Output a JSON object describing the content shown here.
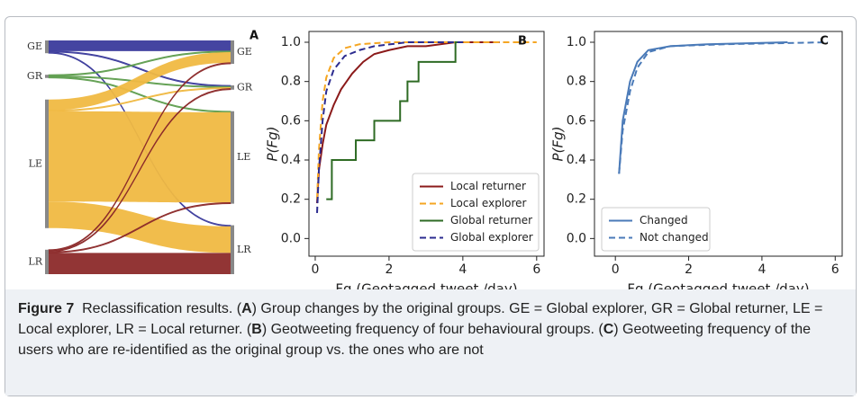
{
  "chart_data": [
    {
      "type": "sankey",
      "panel_label": "A",
      "nodes": [
        "GE",
        "GR",
        "LE",
        "LR"
      ],
      "colors": [
        "#3b3b9c",
        "#5f9e4f",
        "#f0b942",
        "#8c2a2a"
      ],
      "links": [
        {
          "source": 0,
          "target": 0,
          "value": 10
        },
        {
          "source": 0,
          "target": 1,
          "value": 1
        },
        {
          "source": 0,
          "target": 3,
          "value": 1
        },
        {
          "source": 1,
          "target": 0,
          "value": 1
        },
        {
          "source": 1,
          "target": 1,
          "value": 1
        },
        {
          "source": 1,
          "target": 2,
          "value": 1
        },
        {
          "source": 2,
          "target": 0,
          "value": 10
        },
        {
          "source": 2,
          "target": 1,
          "value": 1
        },
        {
          "source": 2,
          "target": 2,
          "value": 85
        },
        {
          "source": 2,
          "target": 3,
          "value": 25
        },
        {
          "source": 3,
          "target": 0,
          "value": 1
        },
        {
          "source": 3,
          "target": 1,
          "value": 1
        },
        {
          "source": 3,
          "target": 2,
          "value": 1
        },
        {
          "source": 3,
          "target": 3,
          "value": 20
        }
      ]
    },
    {
      "type": "line",
      "panel_label": "B",
      "xlabel": "Fg (Geotagged tweet /day)",
      "ylabel": "P(Fg)",
      "xlim": [
        -0.17,
        6.2
      ],
      "ylim": [
        -0.09,
        1.055
      ],
      "xticks": [
        0,
        2,
        4,
        6
      ],
      "yticks": [
        {
          "value": 0,
          "label": "0.0"
        },
        {
          "value": 0.2,
          "label": "0.2"
        },
        {
          "value": 0.4,
          "label": "0.4"
        },
        {
          "value": 0.6,
          "label": "0.6"
        },
        {
          "value": 0.8,
          "label": "0.8"
        },
        {
          "value": 1,
          "label": "1.0"
        }
      ],
      "legend": "lower right",
      "series": [
        {
          "name": "Local returner",
          "color": "#8b1a1a",
          "dashed": false,
          "x": [
            0.05,
            0.1,
            0.2,
            0.3,
            0.5,
            0.7,
            1.0,
            1.3,
            1.6,
            2.0,
            2.5,
            3.0,
            3.8,
            5.0
          ],
          "values": [
            0.18,
            0.35,
            0.48,
            0.58,
            0.68,
            0.76,
            0.84,
            0.9,
            0.94,
            0.96,
            0.98,
            0.98,
            1.0,
            1.0
          ]
        },
        {
          "name": "Local explorer",
          "color": "#f5a623",
          "dashed": true,
          "x": [
            0.05,
            0.1,
            0.2,
            0.3,
            0.5,
            0.8,
            1.2,
            2.0,
            4.0,
            6.0
          ],
          "values": [
            0.2,
            0.45,
            0.7,
            0.82,
            0.92,
            0.97,
            0.99,
            1.0,
            1.0,
            1.0
          ]
        },
        {
          "name": "Global returner",
          "color": "#2e6b24",
          "dashed": false,
          "x": [
            0.3,
            0.45,
            0.45,
            1.1,
            1.1,
            1.6,
            1.6,
            2.3,
            2.3,
            2.5,
            2.5,
            2.8,
            2.8,
            3.8,
            3.8,
            4.0
          ],
          "values": [
            0.2,
            0.2,
            0.4,
            0.4,
            0.5,
            0.5,
            0.6,
            0.6,
            0.7,
            0.7,
            0.8,
            0.8,
            0.9,
            0.9,
            1.0,
            1.0
          ]
        },
        {
          "name": "Global explorer",
          "color": "#2b2b8f",
          "dashed": true,
          "x": [
            0.05,
            0.1,
            0.2,
            0.3,
            0.5,
            0.8,
            1.2,
            1.6,
            2.5,
            4.0
          ],
          "values": [
            0.13,
            0.35,
            0.6,
            0.75,
            0.86,
            0.93,
            0.96,
            0.98,
            1.0,
            1.0
          ]
        }
      ]
    },
    {
      "type": "line",
      "panel_label": "C",
      "xlabel": "Fg (Geotagged tweet /day)",
      "ylabel": "P(Fg)",
      "xlim": [
        -0.57,
        6.19
      ],
      "ylim": [
        -0.09,
        1.055
      ],
      "xticks": [
        0,
        2,
        4,
        6
      ],
      "yticks": [
        {
          "value": 0,
          "label": "0.0"
        },
        {
          "value": 0.2,
          "label": "0.2"
        },
        {
          "value": 0.4,
          "label": "0.4"
        },
        {
          "value": 0.6,
          "label": "0.6"
        },
        {
          "value": 0.8,
          "label": "0.8"
        },
        {
          "value": 1,
          "label": "1.0"
        }
      ],
      "legend": "lower left",
      "series": [
        {
          "name": "Changed",
          "color": "#4a7ab8",
          "dashed": false,
          "x": [
            0.1,
            0.2,
            0.4,
            0.6,
            0.9,
            1.5,
            2.5,
            4.7
          ],
          "values": [
            0.33,
            0.6,
            0.8,
            0.9,
            0.96,
            0.98,
            0.99,
            1.0
          ]
        },
        {
          "name": "Not changed",
          "color": "#4a7ab8",
          "dashed": true,
          "x": [
            0.1,
            0.2,
            0.4,
            0.6,
            0.9,
            1.5,
            3.0,
            5.8
          ],
          "values": [
            0.33,
            0.55,
            0.75,
            0.87,
            0.95,
            0.98,
            0.99,
            1.0
          ]
        }
      ]
    }
  ],
  "caption": {
    "segments": [
      {
        "text": "Figure 7",
        "bold": true
      },
      {
        "text": "  Reclassification results. (",
        "bold": false
      },
      {
        "text": "A",
        "bold": true
      },
      {
        "text": ") Group changes by the original groups. GE = Global explorer, GR = Global returner, LE = Local explorer, LR = Local returner. (",
        "bold": false
      },
      {
        "text": "B",
        "bold": true
      },
      {
        "text": ") Geotweeting frequency of four behavioural groups. (",
        "bold": false
      },
      {
        "text": "C",
        "bold": true
      },
      {
        "text": ") Geotweeting frequency of the users who are re-identified as the original group vs. the ones who are not",
        "bold": false
      }
    ]
  }
}
